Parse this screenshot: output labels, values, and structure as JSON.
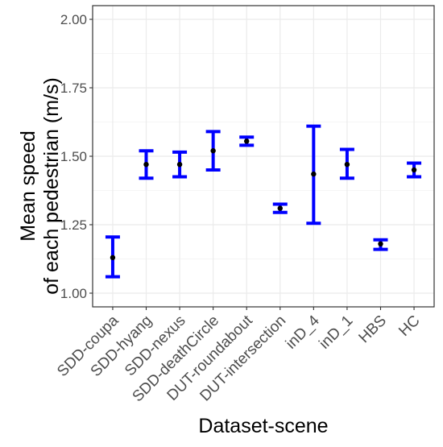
{
  "chart_data": {
    "type": "scatter",
    "subtype": "point-with-error-bars",
    "title": "",
    "xlabel": "Dataset-scene",
    "ylabel_lines": [
      "Mean speed",
      "of each pedestrian (m/s)"
    ],
    "ylim": [
      0.95,
      2.05
    ],
    "yticks": [
      "1.00",
      "1.25",
      "1.50",
      "1.75",
      "2.00"
    ],
    "ytick_values": [
      1.0,
      1.25,
      1.5,
      1.75,
      2.0
    ],
    "grid": true,
    "legend": "none",
    "colors": {
      "error_bar": "#0000ff",
      "point": "#000000",
      "grid": "#ebebeb",
      "panel_border": "#333333"
    },
    "categories": [
      "SDD-coupa",
      "SDD-hyang",
      "SDD-nexus",
      "SDD-deathCircle",
      "DUT-roundabout",
      "DUT-intersection",
      "inD_4",
      "inD_1",
      "HBS",
      "HC"
    ],
    "series": [
      {
        "mean": [
          1.13,
          1.47,
          1.47,
          1.52,
          1.555,
          1.31,
          1.435,
          1.47,
          1.18,
          1.45
        ],
        "lower": [
          1.06,
          1.42,
          1.425,
          1.45,
          1.54,
          1.295,
          1.255,
          1.42,
          1.16,
          1.425
        ],
        "upper": [
          1.205,
          1.52,
          1.515,
          1.59,
          1.57,
          1.325,
          1.61,
          1.525,
          1.195,
          1.475
        ]
      }
    ]
  }
}
